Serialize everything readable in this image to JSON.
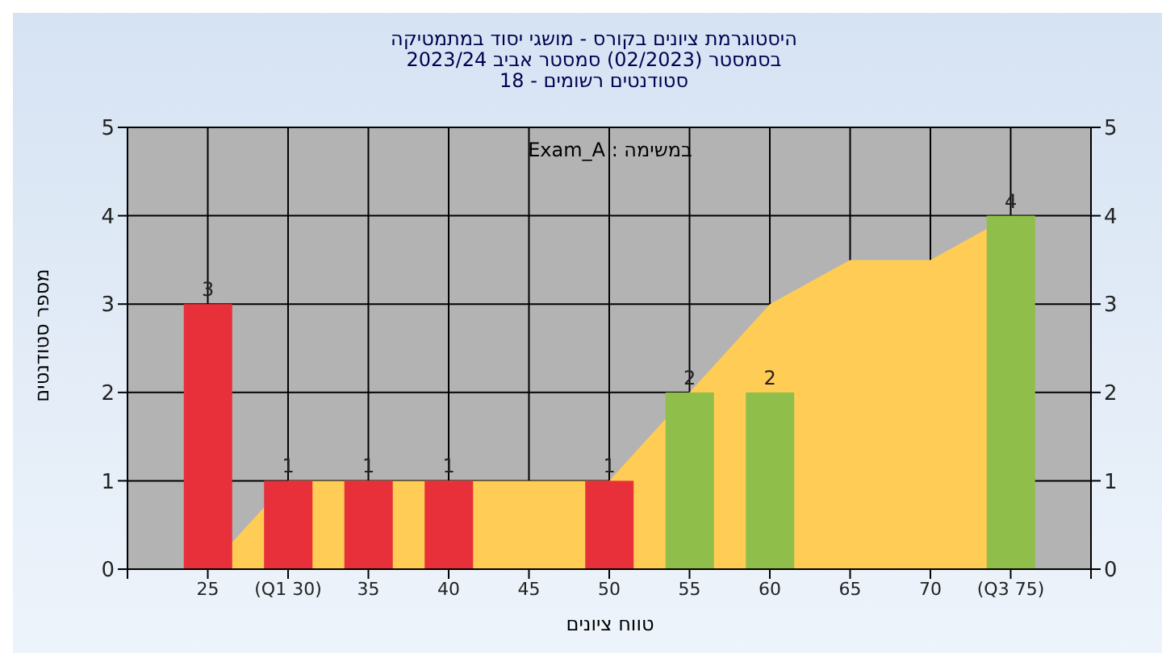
{
  "chart_data": {
    "type": "bar",
    "title": "היסטוגרמת ציונים בקורס - מושגי יסוד במתמטיקה",
    "subtitle": "בסמסטר  (02/2023)  סמסטר אביב 2023/24\nסטודנטים רשומים - 18",
    "xlabel": "טווח ציונים",
    "ylabel": "מספר סטודנטים",
    "annotations": [
      "במשימה : Exam_A"
    ],
    "x": [
      25,
      30,
      35,
      40,
      45,
      50,
      55,
      60,
      65,
      70,
      75
    ],
    "series": [
      {
        "type": "area",
        "color": "#ffcc55",
        "values": [
          0,
          1,
          1,
          1,
          1,
          1,
          2,
          3,
          3.5,
          3.5,
          4
        ]
      },
      {
        "type": "bar",
        "value_labels": [
          "3",
          "1",
          "1",
          "1",
          null,
          "1",
          "2",
          "2",
          null,
          null,
          "4"
        ],
        "colors": [
          "#e8303a",
          "#e8303a",
          "#e8303a",
          "#e8303a",
          "#e8303a",
          "#e8303a",
          "#8fbf4a",
          "#8fbf4a",
          "#8fbf4a",
          "#8fbf4a",
          "#8fbf4a"
        ],
        "values": [
          3,
          1,
          1,
          1,
          null,
          1,
          2,
          2,
          null,
          null,
          4
        ]
      }
    ],
    "xlim": [
      20,
      80
    ],
    "xticks": [
      {
        "value": 20,
        "label": null
      },
      25,
      {
        "value": 30,
        "label": "(Q1 30)"
      },
      35,
      40,
      45,
      50,
      55,
      60,
      65,
      70,
      {
        "value": 75,
        "label": "(Q3 75)"
      },
      {
        "value": 80,
        "label": null
      }
    ],
    "ylim": [
      0,
      5
    ],
    "yticks": [
      0,
      1,
      2,
      3,
      4,
      5
    ],
    "y2lim": [
      0,
      5
    ],
    "y2ticks": [
      0,
      1,
      2,
      3,
      4,
      5
    ],
    "grid": true,
    "legend": false
  }
}
